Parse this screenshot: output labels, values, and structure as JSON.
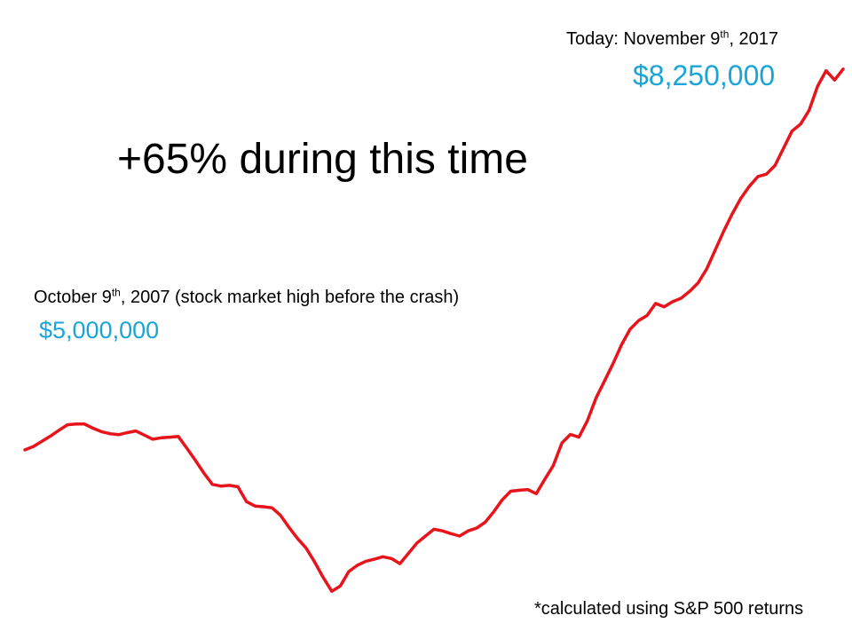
{
  "chart_data": {
    "type": "line",
    "title": "",
    "xlabel": "",
    "ylabel": "",
    "x_start_label": "2007-10-09",
    "x_end_label": "2017-11-09",
    "series": [
      {
        "color": "#e8141b",
        "values": [
          4.25,
          4.35,
          4.5,
          4.65,
          4.82,
          4.98,
          5.0,
          5.0,
          4.88,
          4.78,
          4.72,
          4.69,
          4.75,
          4.8,
          4.68,
          4.56,
          4.6,
          4.62,
          4.64,
          4.3,
          3.95,
          3.58,
          3.25,
          3.2,
          3.22,
          3.18,
          2.75,
          2.62,
          2.6,
          2.57,
          2.35,
          2.0,
          1.68,
          1.4,
          1.0,
          0.55,
          0.15,
          0.3,
          0.72,
          0.9,
          1.02,
          1.08,
          1.15,
          1.1,
          0.95,
          1.25,
          1.55,
          1.75,
          1.95,
          1.9,
          1.82,
          1.75,
          1.9,
          1.98,
          2.15,
          2.45,
          2.8,
          3.05,
          3.08,
          3.1,
          2.98,
          3.4,
          3.8,
          4.45,
          4.7,
          4.62,
          5.1,
          5.75,
          6.25,
          6.75,
          7.3,
          7.75,
          8.0,
          8.15,
          8.5,
          8.4,
          8.55,
          8.65,
          8.85,
          9.1,
          9.5,
          10.05,
          10.6,
          11.1,
          11.55,
          11.9,
          12.18,
          12.25,
          12.5,
          13.0,
          13.5,
          13.7,
          14.1,
          14.8,
          15.25,
          14.98,
          15.3
        ]
      }
    ],
    "annotations": {
      "start_label": "October 9",
      "start_label_sup": "th",
      "start_label_rest": ", 2007 (stock market high before the crash)",
      "start_value": "$5,000,000",
      "end_label": "Today: November 9",
      "end_label_sup": "th",
      "end_label_rest": ", 2017",
      "end_value": "$8,250,000",
      "headline": "+65% during this time",
      "footnote": "*calculated using S&P 500 returns"
    },
    "grid": false,
    "legend": "none"
  },
  "colors": {
    "line": "#e8141b",
    "value_text": "#1aa5d8",
    "text": "#000000"
  }
}
